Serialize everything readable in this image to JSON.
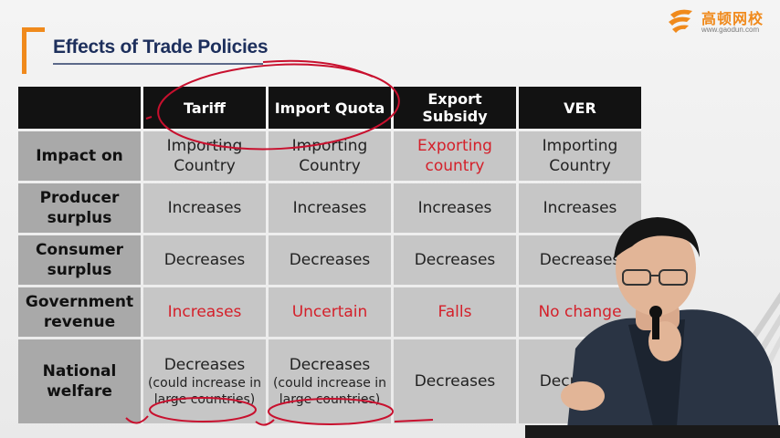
{
  "slide": {
    "title": "Effects of Trade Policies"
  },
  "logo": {
    "name": "高顿网校",
    "url": "www.gaodun.com",
    "color": "#f08a1c"
  },
  "table": {
    "headers": [
      "",
      "Tariff",
      "Import Quota",
      "Export Subsidy",
      "VER"
    ],
    "rows": [
      {
        "label": "Impact on",
        "cells": [
          {
            "main": "Importing Country",
            "sub": "",
            "red": false
          },
          {
            "main": "Importing Country",
            "sub": "",
            "red": false
          },
          {
            "main": "Exporting country",
            "sub": "",
            "red": true
          },
          {
            "main": "Importing Country",
            "sub": "",
            "red": false
          }
        ]
      },
      {
        "label": "Producer surplus",
        "cells": [
          {
            "main": "Increases",
            "sub": "",
            "red": false
          },
          {
            "main": "Increases",
            "sub": "",
            "red": false
          },
          {
            "main": "Increases",
            "sub": "",
            "red": false
          },
          {
            "main": "Increases",
            "sub": "",
            "red": false
          }
        ]
      },
      {
        "label": "Consumer surplus",
        "cells": [
          {
            "main": "Decreases",
            "sub": "",
            "red": false
          },
          {
            "main": "Decreases",
            "sub": "",
            "red": false
          },
          {
            "main": "Decreases",
            "sub": "",
            "red": false
          },
          {
            "main": "Decreases",
            "sub": "",
            "red": false
          }
        ]
      },
      {
        "label": "Government revenue",
        "cells": [
          {
            "main": "Increases",
            "sub": "",
            "red": true
          },
          {
            "main": "Uncertain",
            "sub": "",
            "red": true
          },
          {
            "main": "Falls",
            "sub": "",
            "red": true
          },
          {
            "main": "No change",
            "sub": "",
            "red": true
          }
        ]
      },
      {
        "label": "National welfare",
        "cells": [
          {
            "main": "Decreases",
            "sub": "(could increase in large countries)",
            "red": false
          },
          {
            "main": "Decreases",
            "sub": "(could increase in large countries)",
            "red": false
          },
          {
            "main": "Decreases",
            "sub": "",
            "red": false
          },
          {
            "main": "Decreases",
            "sub": "",
            "red": false
          }
        ]
      }
    ]
  },
  "colors": {
    "header_bg": "#121212",
    "cell_bg": "#c6c6c6",
    "rowhead_bg": "#a9a9a9",
    "highlight_red": "#d4202a",
    "title_color": "#1d2f5c",
    "annotation_red": "#c8102e"
  }
}
